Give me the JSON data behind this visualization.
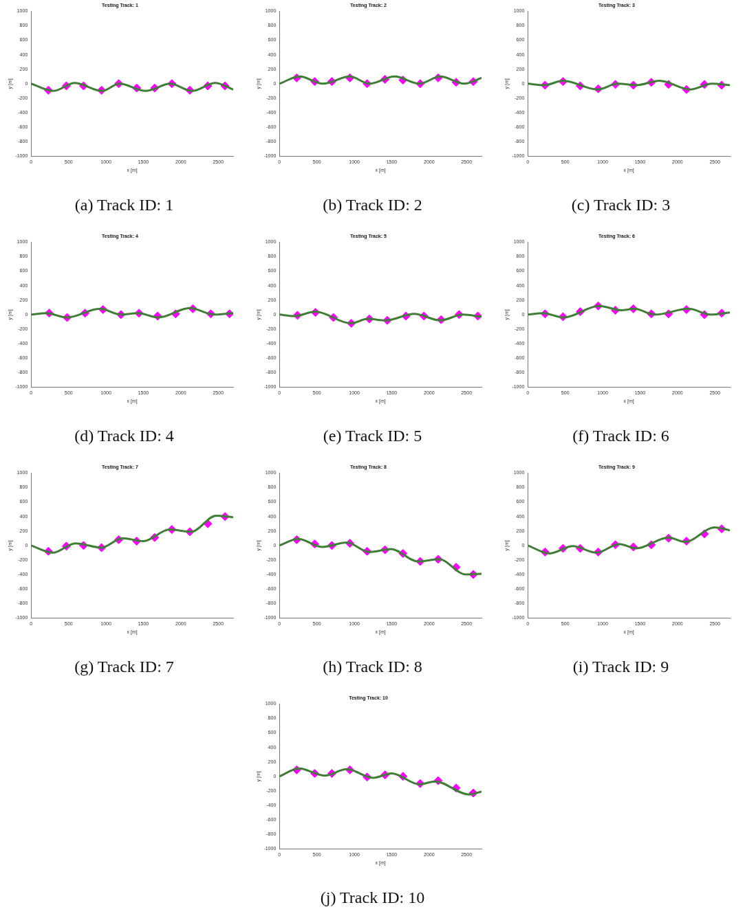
{
  "chart_data": [
    {
      "type": "line",
      "title": "Testing Track: 1",
      "xlabel": "x [m]",
      "ylabel": "y [m]",
      "annotations": [
        "(a) Track ID: 1"
      ],
      "xlim": [
        0,
        2700
      ],
      "xticks": [
        0,
        500,
        1000,
        1500,
        2000,
        2500
      ],
      "ylim": [
        -1000,
        1000
      ],
      "yticks": [
        -1000,
        -800,
        -600,
        -400,
        -200,
        0,
        200,
        400,
        600,
        800,
        1000
      ],
      "series": [
        {
          "type": "line",
          "color": "#3f7f35",
          "marker": "none",
          "x": [
            0,
            300,
            580,
            950,
            1180,
            1530,
            1860,
            2150,
            2460,
            2700
          ],
          "values": [
            0,
            -100,
            10,
            -100,
            0,
            -100,
            0,
            -100,
            10,
            -80
          ]
        },
        {
          "type": "scatter",
          "color": "#ff00ff",
          "marker": "diamond",
          "x": [
            230,
            470,
            700,
            940,
            1170,
            1410,
            1650,
            1880,
            2120,
            2360,
            2590
          ],
          "values": [
            -90,
            -30,
            -30,
            -90,
            0,
            -60,
            -60,
            0,
            -90,
            -30,
            -30
          ]
        }
      ]
    },
    {
      "type": "line",
      "title": "Testing Track: 2",
      "xlabel": "x [m]",
      "ylabel": "y [m]",
      "annotations": [
        "(b) Track ID: 2"
      ],
      "xlim": [
        0,
        2700
      ],
      "xticks": [
        0,
        500,
        1000,
        1500,
        2000,
        2500
      ],
      "ylim": [
        -1000,
        1000
      ],
      "yticks": [
        -1000,
        -800,
        -600,
        -400,
        -200,
        0,
        200,
        400,
        600,
        800,
        1000
      ],
      "series": [
        {
          "type": "line",
          "color": "#3f7f35",
          "marker": "none",
          "x": [
            0,
            270,
            580,
            940,
            1200,
            1540,
            1870,
            2150,
            2470,
            2700
          ],
          "values": [
            0,
            100,
            0,
            100,
            0,
            100,
            0,
            100,
            0,
            80
          ]
        },
        {
          "type": "scatter",
          "color": "#ff00ff",
          "marker": "diamond",
          "x": [
            230,
            470,
            700,
            940,
            1170,
            1410,
            1650,
            1880,
            2120,
            2360,
            2590
          ],
          "values": [
            80,
            30,
            30,
            80,
            0,
            60,
            50,
            0,
            80,
            20,
            30
          ]
        }
      ]
    },
    {
      "type": "line",
      "title": "Testing Track: 3",
      "xlabel": "x [m]",
      "ylabel": "y [m]",
      "annotations": [
        "(c) Track ID: 3"
      ],
      "xlim": [
        0,
        2700
      ],
      "xticks": [
        0,
        500,
        1000,
        1500,
        2000,
        2500
      ],
      "ylim": [
        -1000,
        1000
      ],
      "yticks": [
        -1000,
        -800,
        -600,
        -400,
        -200,
        0,
        200,
        400,
        600,
        800,
        1000
      ],
      "series": [
        {
          "type": "line",
          "color": "#3f7f35",
          "marker": "none",
          "x": [
            0,
            220,
            470,
            930,
            1200,
            1450,
            1760,
            2170,
            2460,
            2700
          ],
          "values": [
            0,
            -20,
            40,
            -80,
            0,
            -20,
            40,
            -80,
            0,
            -20
          ]
        },
        {
          "type": "scatter",
          "color": "#ff00ff",
          "marker": "diamond",
          "x": [
            230,
            470,
            700,
            940,
            1170,
            1410,
            1650,
            1880,
            2120,
            2360,
            2590
          ],
          "values": [
            -20,
            30,
            -30,
            -70,
            -10,
            -20,
            20,
            -10,
            -80,
            -10,
            -20
          ]
        }
      ]
    },
    {
      "type": "line",
      "title": "Testing Track: 4",
      "xlabel": "x [m]",
      "ylabel": "y [m]",
      "annotations": [
        "(d) Track ID: 4"
      ],
      "xlim": [
        0,
        2700
      ],
      "xticks": [
        0,
        500,
        1000,
        1500,
        2000,
        2500
      ],
      "ylim": [
        -1000,
        1000
      ],
      "yticks": [
        -1000,
        -800,
        -600,
        -400,
        -200,
        0,
        200,
        400,
        600,
        800,
        1000
      ],
      "series": [
        {
          "type": "line",
          "color": "#3f7f35",
          "marker": "none",
          "x": [
            0,
            200,
            480,
            920,
            1200,
            1430,
            1700,
            2120,
            2450,
            2700
          ],
          "values": [
            0,
            20,
            -40,
            80,
            0,
            20,
            -40,
            90,
            0,
            20
          ]
        },
        {
          "type": "scatter",
          "color": "#ff00ff",
          "marker": "diamond",
          "x": [
            240,
            480,
            720,
            960,
            1200,
            1440,
            1690,
            1930,
            2160,
            2400,
            2650
          ],
          "values": [
            20,
            -40,
            20,
            70,
            0,
            20,
            -20,
            10,
            80,
            10,
            10
          ]
        }
      ]
    },
    {
      "type": "line",
      "title": "Testing Track: 5",
      "xlabel": "x [m]",
      "ylabel": "y [m]",
      "annotations": [
        "(e) Track ID: 5"
      ],
      "xlim": [
        0,
        2700
      ],
      "xticks": [
        0,
        500,
        1000,
        1500,
        2000,
        2500
      ],
      "ylim": [
        -1000,
        1000
      ],
      "yticks": [
        -1000,
        -800,
        -600,
        -400,
        -200,
        0,
        200,
        400,
        600,
        800,
        1000
      ],
      "series": [
        {
          "type": "line",
          "color": "#3f7f35",
          "marker": "none",
          "x": [
            0,
            200,
            480,
            950,
            1180,
            1420,
            1800,
            2150,
            2450,
            2700
          ],
          "values": [
            0,
            -20,
            40,
            -120,
            -60,
            -80,
            10,
            -80,
            0,
            -30
          ]
        },
        {
          "type": "scatter",
          "color": "#ff00ff",
          "marker": "diamond",
          "x": [
            240,
            480,
            720,
            960,
            1200,
            1440,
            1690,
            1930,
            2160,
            2400,
            2650
          ],
          "values": [
            -10,
            30,
            -40,
            -120,
            -60,
            -80,
            -20,
            -20,
            -70,
            0,
            -20
          ]
        }
      ]
    },
    {
      "type": "line",
      "title": "Testing Track: 6",
      "xlabel": "x [m]",
      "ylabel": "y [m]",
      "annotations": [
        "(f) Track ID: 6"
      ],
      "xlim": [
        0,
        2700
      ],
      "xticks": [
        0,
        500,
        1000,
        1500,
        2000,
        2500
      ],
      "ylim": [
        -1000,
        1000
      ],
      "yticks": [
        -1000,
        -800,
        -600,
        -400,
        -200,
        0,
        200,
        400,
        600,
        800,
        1000
      ],
      "series": [
        {
          "type": "line",
          "color": "#3f7f35",
          "marker": "none",
          "x": [
            0,
            200,
            480,
            950,
            1250,
            1420,
            1700,
            2150,
            2440,
            2700
          ],
          "values": [
            0,
            20,
            -40,
            120,
            60,
            80,
            0,
            80,
            0,
            30
          ]
        },
        {
          "type": "scatter",
          "color": "#ff00ff",
          "marker": "diamond",
          "x": [
            230,
            470,
            700,
            940,
            1170,
            1410,
            1650,
            1880,
            2120,
            2360,
            2590
          ],
          "values": [
            10,
            -30,
            40,
            120,
            60,
            80,
            10,
            10,
            70,
            0,
            20
          ]
        }
      ]
    },
    {
      "type": "line",
      "title": "Testing Track: 7",
      "xlabel": "x [m]",
      "ylabel": "y [m]",
      "annotations": [
        "(g) Track ID: 7"
      ],
      "xlim": [
        0,
        2700
      ],
      "xticks": [
        0,
        500,
        1000,
        1500,
        2000,
        2500
      ],
      "ylim": [
        -1000,
        1000
      ],
      "yticks": [
        -1000,
        -800,
        -600,
        -400,
        -200,
        0,
        200,
        400,
        600,
        800,
        1000
      ],
      "series": [
        {
          "type": "line",
          "color": "#3f7f35",
          "marker": "none",
          "x": [
            0,
            290,
            590,
            940,
            1220,
            1500,
            1850,
            2140,
            2470,
            2700
          ],
          "values": [
            0,
            -100,
            30,
            -30,
            100,
            60,
            220,
            190,
            410,
            390
          ]
        },
        {
          "type": "scatter",
          "color": "#ff00ff",
          "marker": "diamond",
          "x": [
            230,
            470,
            700,
            940,
            1170,
            1410,
            1650,
            1880,
            2120,
            2360,
            2590
          ],
          "values": [
            -80,
            -10,
            0,
            -30,
            80,
            60,
            110,
            220,
            190,
            300,
            400
          ]
        }
      ]
    },
    {
      "type": "line",
      "title": "Testing Track: 8",
      "xlabel": "x [m]",
      "ylabel": "y [m]",
      "annotations": [
        "(h) Track ID: 8"
      ],
      "xlim": [
        0,
        2700
      ],
      "xticks": [
        0,
        500,
        1000,
        1500,
        2000,
        2500
      ],
      "ylim": [
        -1000,
        1000
      ],
      "yticks": [
        -1000,
        -800,
        -600,
        -400,
        -200,
        0,
        200,
        400,
        600,
        800,
        1000
      ],
      "series": [
        {
          "type": "line",
          "color": "#3f7f35",
          "marker": "none",
          "x": [
            0,
            250,
            570,
            900,
            1200,
            1490,
            1850,
            2130,
            2490,
            2700
          ],
          "values": [
            0,
            90,
            -20,
            40,
            -90,
            -50,
            -220,
            -190,
            -400,
            -390
          ]
        },
        {
          "type": "scatter",
          "color": "#ff00ff",
          "marker": "diamond",
          "x": [
            230,
            470,
            700,
            940,
            1170,
            1410,
            1650,
            1880,
            2120,
            2360,
            2590
          ],
          "values": [
            80,
            20,
            0,
            30,
            -80,
            -60,
            -110,
            -220,
            -190,
            -300,
            -400
          ]
        }
      ]
    },
    {
      "type": "line",
      "title": "Testing Track: 9",
      "xlabel": "x [m]",
      "ylabel": "y [m]",
      "annotations": [
        "(i) Track ID: 9"
      ],
      "xlim": [
        0,
        2700
      ],
      "xticks": [
        0,
        500,
        1000,
        1500,
        2000,
        2500
      ],
      "ylim": [
        -1000,
        1000
      ],
      "yticks": [
        -1000,
        -800,
        -600,
        -400,
        -200,
        0,
        200,
        400,
        600,
        800,
        1000
      ],
      "series": [
        {
          "type": "line",
          "color": "#3f7f35",
          "marker": "none",
          "x": [
            0,
            290,
            600,
            920,
            1220,
            1450,
            1880,
            2100,
            2500,
            2700
          ],
          "values": [
            0,
            -110,
            -10,
            -100,
            20,
            -40,
            110,
            50,
            250,
            210
          ]
        },
        {
          "type": "scatter",
          "color": "#ff00ff",
          "marker": "diamond",
          "x": [
            230,
            470,
            700,
            940,
            1170,
            1410,
            1650,
            1880,
            2120,
            2360,
            2590
          ],
          "values": [
            -90,
            -40,
            -40,
            -90,
            10,
            -20,
            10,
            100,
            60,
            160,
            230
          ]
        }
      ]
    },
    {
      "type": "line",
      "title": "Testing Track: 10",
      "xlabel": "x [m]",
      "ylabel": "y [m]",
      "annotations": [
        "(j) Track ID: 10"
      ],
      "xlim": [
        0,
        2700
      ],
      "xticks": [
        0,
        500,
        1000,
        1500,
        2000,
        2500
      ],
      "ylim": [
        -1000,
        1000
      ],
      "yticks": [
        -1000,
        -800,
        -600,
        -400,
        -200,
        0,
        200,
        400,
        600,
        800,
        1000
      ],
      "series": [
        {
          "type": "line",
          "color": "#3f7f35",
          "marker": "none",
          "x": [
            0,
            260,
            600,
            900,
            1250,
            1500,
            1870,
            2080,
            2530,
            2700
          ],
          "values": [
            0,
            110,
            10,
            100,
            -20,
            40,
            -110,
            -70,
            -250,
            -210
          ]
        },
        {
          "type": "scatter",
          "color": "#ff00ff",
          "marker": "diamond",
          "x": [
            230,
            470,
            700,
            940,
            1170,
            1410,
            1650,
            1880,
            2120,
            2360,
            2590
          ],
          "values": [
            90,
            40,
            40,
            90,
            -10,
            20,
            0,
            -100,
            -60,
            -160,
            -230
          ]
        }
      ]
    }
  ]
}
